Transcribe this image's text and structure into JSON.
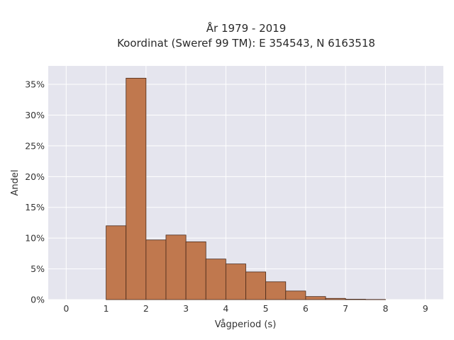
{
  "chart_data": {
    "type": "bar",
    "title": "År 1979 - 2019",
    "subtitle": "Koordinat (Sweref 99 TM): E 354543, N 6163518",
    "xlabel": "Vågperiod (s)",
    "ylabel": "Andel",
    "xlim": [
      -0.45,
      9.45
    ],
    "ylim": [
      0,
      0.38
    ],
    "xticks": [
      0,
      1,
      2,
      3,
      4,
      5,
      6,
      7,
      8,
      9
    ],
    "yticks": [
      0,
      0.05,
      0.1,
      0.15,
      0.2,
      0.25,
      0.3,
      0.35
    ],
    "ytick_labels": [
      "0%",
      "5%",
      "10%",
      "15%",
      "20%",
      "25%",
      "30%",
      "35%"
    ],
    "grid": true,
    "bin_width": 0.5,
    "bins": [
      {
        "start": 1.0,
        "value": 0.12
      },
      {
        "start": 1.5,
        "value": 0.36
      },
      {
        "start": 2.0,
        "value": 0.097
      },
      {
        "start": 2.5,
        "value": 0.105
      },
      {
        "start": 3.0,
        "value": 0.094
      },
      {
        "start": 3.5,
        "value": 0.066
      },
      {
        "start": 4.0,
        "value": 0.058
      },
      {
        "start": 4.5,
        "value": 0.045
      },
      {
        "start": 5.0,
        "value": 0.029
      },
      {
        "start": 5.5,
        "value": 0.014
      },
      {
        "start": 6.0,
        "value": 0.005
      },
      {
        "start": 6.5,
        "value": 0.002
      },
      {
        "start": 7.0,
        "value": 0.0007
      },
      {
        "start": 7.5,
        "value": 0.0003
      }
    ],
    "colors": {
      "bar_fill": "#c0784e",
      "bar_edge": "#4a2a1a",
      "plot_bg": "#e5e5ee",
      "grid": "#ffffff"
    }
  }
}
